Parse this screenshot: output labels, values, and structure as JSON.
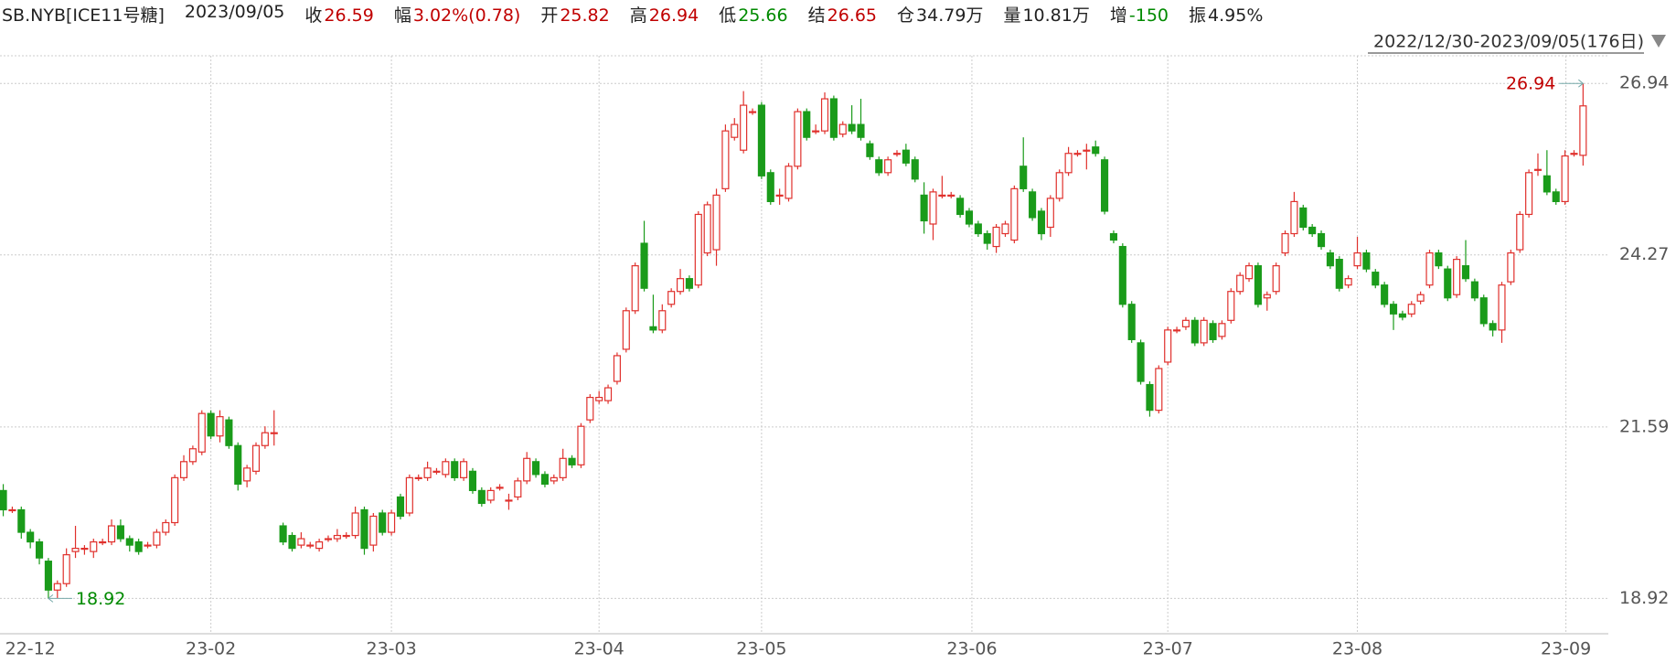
{
  "header": {
    "symbol": "SB.NYB[ICE11号糖]",
    "date": "2023/09/05",
    "items": [
      {
        "label": "收",
        "value": "26.59",
        "color": "#c00000"
      },
      {
        "label": "幅",
        "value": "3.02%(0.78)",
        "color": "#c00000"
      },
      {
        "label": "开",
        "value": "25.82",
        "color": "#c00000"
      },
      {
        "label": "高",
        "value": "26.94",
        "color": "#c00000"
      },
      {
        "label": "低",
        "value": "25.66",
        "color": "#008a00"
      },
      {
        "label": "结",
        "value": "26.65",
        "color": "#c00000"
      },
      {
        "label": "仓",
        "value": "34.79万",
        "color": "#222222"
      },
      {
        "label": "量",
        "value": "10.81万",
        "color": "#222222"
      },
      {
        "label": "增",
        "value": "-150",
        "color": "#008a00"
      },
      {
        "label": "振",
        "value": "4.95%",
        "color": "#222222"
      }
    ],
    "range": "2022/12/30-2023/09/05(176日)"
  },
  "chart_data": {
    "type": "candlestick",
    "up_color": "#e0302c",
    "down_color": "#1a9b1a",
    "grid": true,
    "ylim": [
      18.37,
      27.37
    ],
    "yticks": [
      18.92,
      21.59,
      24.27,
      26.94
    ],
    "xlim": [
      -0.36,
      177.8
    ],
    "xticks": [
      {
        "value": 3,
        "label": "22-12"
      },
      {
        "value": 23,
        "label": "23-02"
      },
      {
        "value": 43,
        "label": "23-03"
      },
      {
        "value": 66,
        "label": "23-04"
      },
      {
        "value": 84,
        "label": "23-05"
      },
      {
        "value": 107.3,
        "label": "23-06"
      },
      {
        "value": 129,
        "label": "23-07"
      },
      {
        "value": 150,
        "label": "23-08"
      },
      {
        "value": 173.1,
        "label": "23-09"
      }
    ],
    "annotations": [
      {
        "value": 26.94,
        "at": 175,
        "color": "#c00000"
      },
      {
        "value": 18.92,
        "at": 5,
        "color": "#008a00"
      }
    ],
    "ohlc": [
      [
        20.6,
        20.7,
        20.2,
        20.3
      ],
      [
        20.3,
        20.35,
        20.25,
        20.3
      ],
      [
        20.3,
        20.35,
        19.85,
        19.95
      ],
      [
        19.95,
        20.0,
        19.7,
        19.8
      ],
      [
        19.8,
        19.85,
        19.45,
        19.55
      ],
      [
        19.5,
        19.55,
        18.92,
        19.05
      ],
      [
        19.05,
        19.2,
        18.92,
        19.15
      ],
      [
        19.15,
        19.7,
        19.1,
        19.6
      ],
      [
        19.65,
        20.05,
        19.55,
        19.7
      ],
      [
        19.7,
        19.75,
        19.6,
        19.7
      ],
      [
        19.65,
        19.85,
        19.55,
        19.8
      ],
      [
        19.8,
        19.85,
        19.75,
        19.8
      ],
      [
        19.8,
        20.15,
        19.75,
        20.05
      ],
      [
        20.05,
        20.15,
        19.8,
        19.85
      ],
      [
        19.85,
        19.9,
        19.65,
        19.75
      ],
      [
        19.8,
        19.85,
        19.6,
        19.65
      ],
      [
        19.75,
        19.8,
        19.7,
        19.75
      ],
      [
        19.75,
        20.0,
        19.7,
        19.95
      ],
      [
        19.95,
        20.15,
        19.9,
        20.1
      ],
      [
        20.1,
        20.85,
        20.05,
        20.8
      ],
      [
        20.8,
        21.15,
        20.75,
        21.05
      ],
      [
        21.05,
        21.3,
        21.0,
        21.25
      ],
      [
        21.2,
        21.85,
        21.15,
        21.8
      ],
      [
        21.8,
        21.85,
        21.4,
        21.45
      ],
      [
        21.45,
        21.85,
        21.35,
        21.75
      ],
      [
        21.7,
        21.75,
        21.25,
        21.3
      ],
      [
        21.3,
        21.35,
        20.6,
        20.7
      ],
      [
        20.75,
        21.0,
        20.65,
        20.95
      ],
      [
        20.9,
        21.35,
        20.85,
        21.3
      ],
      [
        21.3,
        21.6,
        21.25,
        21.5
      ],
      [
        21.5,
        21.85,
        21.3,
        21.5
      ],
      [
        20.05,
        20.1,
        19.75,
        19.8
      ],
      [
        19.9,
        19.95,
        19.65,
        19.7
      ],
      [
        19.75,
        19.95,
        19.7,
        19.85
      ],
      [
        19.75,
        19.8,
        19.7,
        19.75
      ],
      [
        19.7,
        19.85,
        19.65,
        19.8
      ],
      [
        19.85,
        19.9,
        19.8,
        19.85
      ],
      [
        19.85,
        20.0,
        19.8,
        19.9
      ],
      [
        19.9,
        19.95,
        19.85,
        19.9
      ],
      [
        19.9,
        20.35,
        19.85,
        20.25
      ],
      [
        20.3,
        20.35,
        19.6,
        19.7
      ],
      [
        19.75,
        20.25,
        19.65,
        20.2
      ],
      [
        20.25,
        20.3,
        19.9,
        19.95
      ],
      [
        19.95,
        20.3,
        19.9,
        20.25
      ],
      [
        20.5,
        20.55,
        20.15,
        20.2
      ],
      [
        20.25,
        20.85,
        20.2,
        20.8
      ],
      [
        20.8,
        20.85,
        20.75,
        20.8
      ],
      [
        20.8,
        21.05,
        20.75,
        20.95
      ],
      [
        20.9,
        20.95,
        20.85,
        20.9
      ],
      [
        20.85,
        21.1,
        20.8,
        21.05
      ],
      [
        21.05,
        21.1,
        20.75,
        20.8
      ],
      [
        20.8,
        21.1,
        20.75,
        21.05
      ],
      [
        20.9,
        20.95,
        20.55,
        20.6
      ],
      [
        20.6,
        20.65,
        20.35,
        20.4
      ],
      [
        20.45,
        20.65,
        20.4,
        20.6
      ],
      [
        20.65,
        20.7,
        20.6,
        20.65
      ],
      [
        20.45,
        20.55,
        20.3,
        20.45
      ],
      [
        20.5,
        20.8,
        20.45,
        20.75
      ],
      [
        20.75,
        21.2,
        20.7,
        21.1
      ],
      [
        21.05,
        21.1,
        20.8,
        20.85
      ],
      [
        20.85,
        20.9,
        20.65,
        20.7
      ],
      [
        20.75,
        20.85,
        20.7,
        20.8
      ],
      [
        20.8,
        21.25,
        20.75,
        21.1
      ],
      [
        21.1,
        21.15,
        20.95,
        21.0
      ],
      [
        21.0,
        21.65,
        20.95,
        21.6
      ],
      [
        21.7,
        22.1,
        21.65,
        22.05
      ],
      [
        22.0,
        22.15,
        21.95,
        22.05
      ],
      [
        22.0,
        22.25,
        21.95,
        22.2
      ],
      [
        22.3,
        22.75,
        22.25,
        22.7
      ],
      [
        22.8,
        23.45,
        22.75,
        23.4
      ],
      [
        23.4,
        24.15,
        23.35,
        24.1
      ],
      [
        24.45,
        24.8,
        23.7,
        23.75
      ],
      [
        23.15,
        23.65,
        23.05,
        23.1
      ],
      [
        23.1,
        23.5,
        23.05,
        23.4
      ],
      [
        23.5,
        23.75,
        23.45,
        23.7
      ],
      [
        23.7,
        24.05,
        23.65,
        23.9
      ],
      [
        23.9,
        23.95,
        23.7,
        23.75
      ],
      [
        23.8,
        24.95,
        23.75,
        24.9
      ],
      [
        24.3,
        25.1,
        24.25,
        25.05
      ],
      [
        24.35,
        25.3,
        24.1,
        25.2
      ],
      [
        25.3,
        26.3,
        25.25,
        26.2
      ],
      [
        26.1,
        26.4,
        26.05,
        26.3
      ],
      [
        25.9,
        26.82,
        25.85,
        26.6
      ],
      [
        26.5,
        26.55,
        26.45,
        26.5
      ],
      [
        26.6,
        26.65,
        25.45,
        25.5
      ],
      [
        25.55,
        25.6,
        25.05,
        25.1
      ],
      [
        25.2,
        25.3,
        25.05,
        25.2
      ],
      [
        25.15,
        25.7,
        25.1,
        25.65
      ],
      [
        25.65,
        26.55,
        25.6,
        26.5
      ],
      [
        26.5,
        26.55,
        26.05,
        26.1
      ],
      [
        26.2,
        26.3,
        26.15,
        26.2
      ],
      [
        26.2,
        26.8,
        26.15,
        26.7
      ],
      [
        26.7,
        26.75,
        26.05,
        26.1
      ],
      [
        26.15,
        26.35,
        26.1,
        26.3
      ],
      [
        26.3,
        26.6,
        26.15,
        26.2
      ],
      [
        26.3,
        26.7,
        26.05,
        26.1
      ],
      [
        26.0,
        26.05,
        25.75,
        25.8
      ],
      [
        25.75,
        25.8,
        25.5,
        25.55
      ],
      [
        25.55,
        25.8,
        25.5,
        25.75
      ],
      [
        25.85,
        25.9,
        25.8,
        25.85
      ],
      [
        25.9,
        26.0,
        25.65,
        25.7
      ],
      [
        25.75,
        25.8,
        25.4,
        25.45
      ],
      [
        25.2,
        25.4,
        24.6,
        24.8
      ],
      [
        24.75,
        25.3,
        24.5,
        25.25
      ],
      [
        25.2,
        25.5,
        25.15,
        25.2
      ],
      [
        25.2,
        25.25,
        25.15,
        25.2
      ],
      [
        25.15,
        25.2,
        24.85,
        24.9
      ],
      [
        24.95,
        25.0,
        24.7,
        24.75
      ],
      [
        24.75,
        24.8,
        24.55,
        24.6
      ],
      [
        24.6,
        24.65,
        24.35,
        24.45
      ],
      [
        24.4,
        24.75,
        24.3,
        24.7
      ],
      [
        24.6,
        24.8,
        24.55,
        24.75
      ],
      [
        24.5,
        25.35,
        24.45,
        25.3
      ],
      [
        25.65,
        26.1,
        25.25,
        25.3
      ],
      [
        25.25,
        25.3,
        24.8,
        24.85
      ],
      [
        24.95,
        25.0,
        24.5,
        24.6
      ],
      [
        24.7,
        25.2,
        24.55,
        25.15
      ],
      [
        25.15,
        25.6,
        25.1,
        25.55
      ],
      [
        25.55,
        25.95,
        25.5,
        25.85
      ],
      [
        25.85,
        25.9,
        25.8,
        25.85
      ],
      [
        25.9,
        26.0,
        25.6,
        25.9
      ],
      [
        25.95,
        26.05,
        25.8,
        25.85
      ],
      [
        25.75,
        25.8,
        24.9,
        24.95
      ],
      [
        24.6,
        24.65,
        24.45,
        24.5
      ],
      [
        24.4,
        24.45,
        23.45,
        23.5
      ],
      [
        23.5,
        23.55,
        22.9,
        22.95
      ],
      [
        22.9,
        22.95,
        22.25,
        22.3
      ],
      [
        22.25,
        22.3,
        21.75,
        21.85
      ],
      [
        21.85,
        22.55,
        21.8,
        22.5
      ],
      [
        22.6,
        23.15,
        22.55,
        23.1
      ],
      [
        23.1,
        23.15,
        23.05,
        23.1
      ],
      [
        23.15,
        23.3,
        23.1,
        23.25
      ],
      [
        23.25,
        23.3,
        22.85,
        22.9
      ],
      [
        22.9,
        23.3,
        22.85,
        23.25
      ],
      [
        23.2,
        23.25,
        22.9,
        22.95
      ],
      [
        23.0,
        23.25,
        22.95,
        23.2
      ],
      [
        23.25,
        23.75,
        23.2,
        23.7
      ],
      [
        23.7,
        24.0,
        23.65,
        23.95
      ],
      [
        23.9,
        24.15,
        23.85,
        24.1
      ],
      [
        24.1,
        24.15,
        23.45,
        23.5
      ],
      [
        23.6,
        23.7,
        23.4,
        23.65
      ],
      [
        23.7,
        24.15,
        23.65,
        24.1
      ],
      [
        24.3,
        24.65,
        24.25,
        24.6
      ],
      [
        24.6,
        25.25,
        24.55,
        25.1
      ],
      [
        25.0,
        25.05,
        24.65,
        24.7
      ],
      [
        24.7,
        24.75,
        24.55,
        24.6
      ],
      [
        24.6,
        24.65,
        24.35,
        24.4
      ],
      [
        24.3,
        24.35,
        24.05,
        24.1
      ],
      [
        24.2,
        24.25,
        23.7,
        23.75
      ],
      [
        23.8,
        23.95,
        23.75,
        23.9
      ],
      [
        24.1,
        24.55,
        24.05,
        24.3
      ],
      [
        24.3,
        24.35,
        24.0,
        24.05
      ],
      [
        24.0,
        24.05,
        23.75,
        23.8
      ],
      [
        23.8,
        23.85,
        23.45,
        23.5
      ],
      [
        23.5,
        23.55,
        23.1,
        23.35
      ],
      [
        23.35,
        23.4,
        23.25,
        23.3
      ],
      [
        23.35,
        23.55,
        23.3,
        23.5
      ],
      [
        23.55,
        23.7,
        23.5,
        23.65
      ],
      [
        23.8,
        24.35,
        23.75,
        24.3
      ],
      [
        24.3,
        24.35,
        24.05,
        24.1
      ],
      [
        24.05,
        24.1,
        23.55,
        23.6
      ],
      [
        23.65,
        24.25,
        23.6,
        24.2
      ],
      [
        24.1,
        24.5,
        23.85,
        23.9
      ],
      [
        23.85,
        23.9,
        23.55,
        23.6
      ],
      [
        23.6,
        23.65,
        23.15,
        23.2
      ],
      [
        23.2,
        23.25,
        23.0,
        23.1
      ],
      [
        23.1,
        23.85,
        22.9,
        23.8
      ],
      [
        23.85,
        24.35,
        23.8,
        24.3
      ],
      [
        24.35,
        24.95,
        24.3,
        24.9
      ],
      [
        24.9,
        25.6,
        24.85,
        25.55
      ],
      [
        25.6,
        25.85,
        25.5,
        25.6
      ],
      [
        25.5,
        25.9,
        25.2,
        25.25
      ],
      [
        25.25,
        25.3,
        25.05,
        25.1
      ],
      [
        25.1,
        25.9,
        25.05,
        25.81
      ],
      [
        25.85,
        25.9,
        25.8,
        25.85
      ],
      [
        25.82,
        26.94,
        25.66,
        26.59
      ]
    ]
  }
}
